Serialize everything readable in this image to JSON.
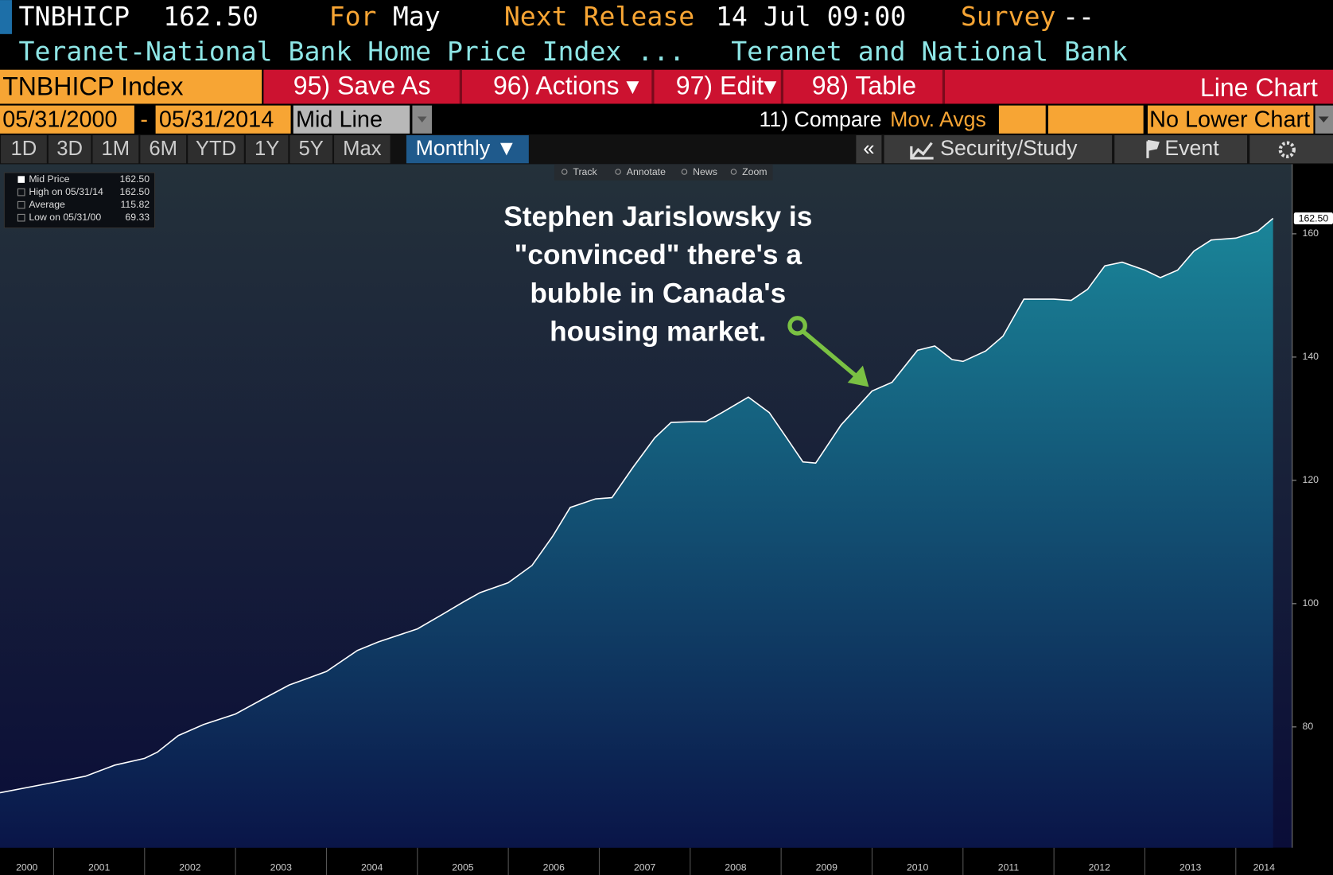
{
  "header": {
    "ticker": "TNBHICP",
    "price": "162.50",
    "for_label": "For",
    "for_value": "May",
    "release_label": "Next Release",
    "release_value": "14 Jul 09:00",
    "survey_label": "Survey",
    "survey_value": "--",
    "name": "Teranet-National Bank Home Price Index ...",
    "source": "Teranet and National Bank"
  },
  "toolbar": {
    "security": "TNBHICP Index",
    "buttons": [
      "95) Save As",
      "96) Actions ▾",
      "97) Edit▾",
      "98) Table"
    ],
    "chart_type": "Line Chart"
  },
  "range": {
    "start": "05/31/2000",
    "separator": "-",
    "end": "05/31/2014",
    "mode": "Mid Line",
    "compare": "11) Compare",
    "compare_value": "Mov. Avgs",
    "lower_chart": "No Lower Chart"
  },
  "periods": {
    "buttons": [
      "1D",
      "3D",
      "1M",
      "6M",
      "YTD",
      "1Y",
      "5Y",
      "Max"
    ],
    "frequency": "Monthly ▼",
    "collapse": "«",
    "security_study": "Security/Study",
    "event": "Event"
  },
  "chart_tools": [
    "Track",
    "Annotate",
    "News",
    "Zoom"
  ],
  "chart_data": {
    "type": "area",
    "x": [
      2000.41,
      2001.0,
      2001.35,
      2001.67,
      2002.0,
      2002.14,
      2002.37,
      2002.65,
      2003.0,
      2003.31,
      2003.59,
      2004.0,
      2004.34,
      2004.57,
      2005.0,
      2005.28,
      2005.51,
      2005.69,
      2006.0,
      2006.26,
      2006.49,
      2006.68,
      2006.96,
      2007.14,
      2007.37,
      2007.61,
      2007.79,
      2008.0,
      2008.17,
      2008.35,
      2008.64,
      2008.87,
      2009.06,
      2009.24,
      2009.38,
      2009.66,
      2010.0,
      2010.22,
      2010.5,
      2010.69,
      2010.88,
      2011.0,
      2011.25,
      2011.44,
      2011.67,
      2012.0,
      2012.19,
      2012.37,
      2012.56,
      2012.75,
      2013.0,
      2013.17,
      2013.36,
      2013.54,
      2013.73,
      2014.0,
      2014.24,
      2014.41
    ],
    "values": [
      69.33,
      71.0,
      72.0,
      73.8,
      74.9,
      75.9,
      78.6,
      80.4,
      82.1,
      84.6,
      86.8,
      89.0,
      92.4,
      93.8,
      95.9,
      98.3,
      100.3,
      101.8,
      103.4,
      106.2,
      111.0,
      115.6,
      117.0,
      117.2,
      122.1,
      126.9,
      129.4,
      129.5,
      129.5,
      131.0,
      133.5,
      131.0,
      126.9,
      123.0,
      122.8,
      129.0,
      134.5,
      135.9,
      141.1,
      141.8,
      139.6,
      139.3,
      141.0,
      143.4,
      149.4,
      149.4,
      149.2,
      151.0,
      154.8,
      155.4,
      154.1,
      152.9,
      154.1,
      157.2,
      159.0,
      159.3,
      160.4,
      162.5
    ],
    "color": "#ffffff",
    "fill_top": "#1a8599",
    "fill_bottom": "#0a1548",
    "xlim": [
      2000.41,
      2014.62
    ],
    "ylim": [
      60.4,
      171.3
    ],
    "xticks": [
      2000,
      2001,
      2002,
      2003,
      2004,
      2005,
      2006,
      2007,
      2008,
      2009,
      2010,
      2011,
      2012,
      2013,
      2014
    ],
    "yticks": [
      80,
      100,
      120,
      140,
      160
    ],
    "grid": false,
    "last_label": "162.50",
    "legend": [
      {
        "label": "Mid Price",
        "value": "162.50"
      },
      {
        "label": "High on 05/31/14",
        "value": "162.50"
      },
      {
        "label": "Average",
        "value": "115.82"
      },
      {
        "label": "Low on 05/31/00",
        "value": "69.33"
      }
    ],
    "annotation": [
      "Stephen Jarislowsky is",
      "\"convinced\" there's a",
      "bubble in Canada's",
      "housing market."
    ]
  }
}
